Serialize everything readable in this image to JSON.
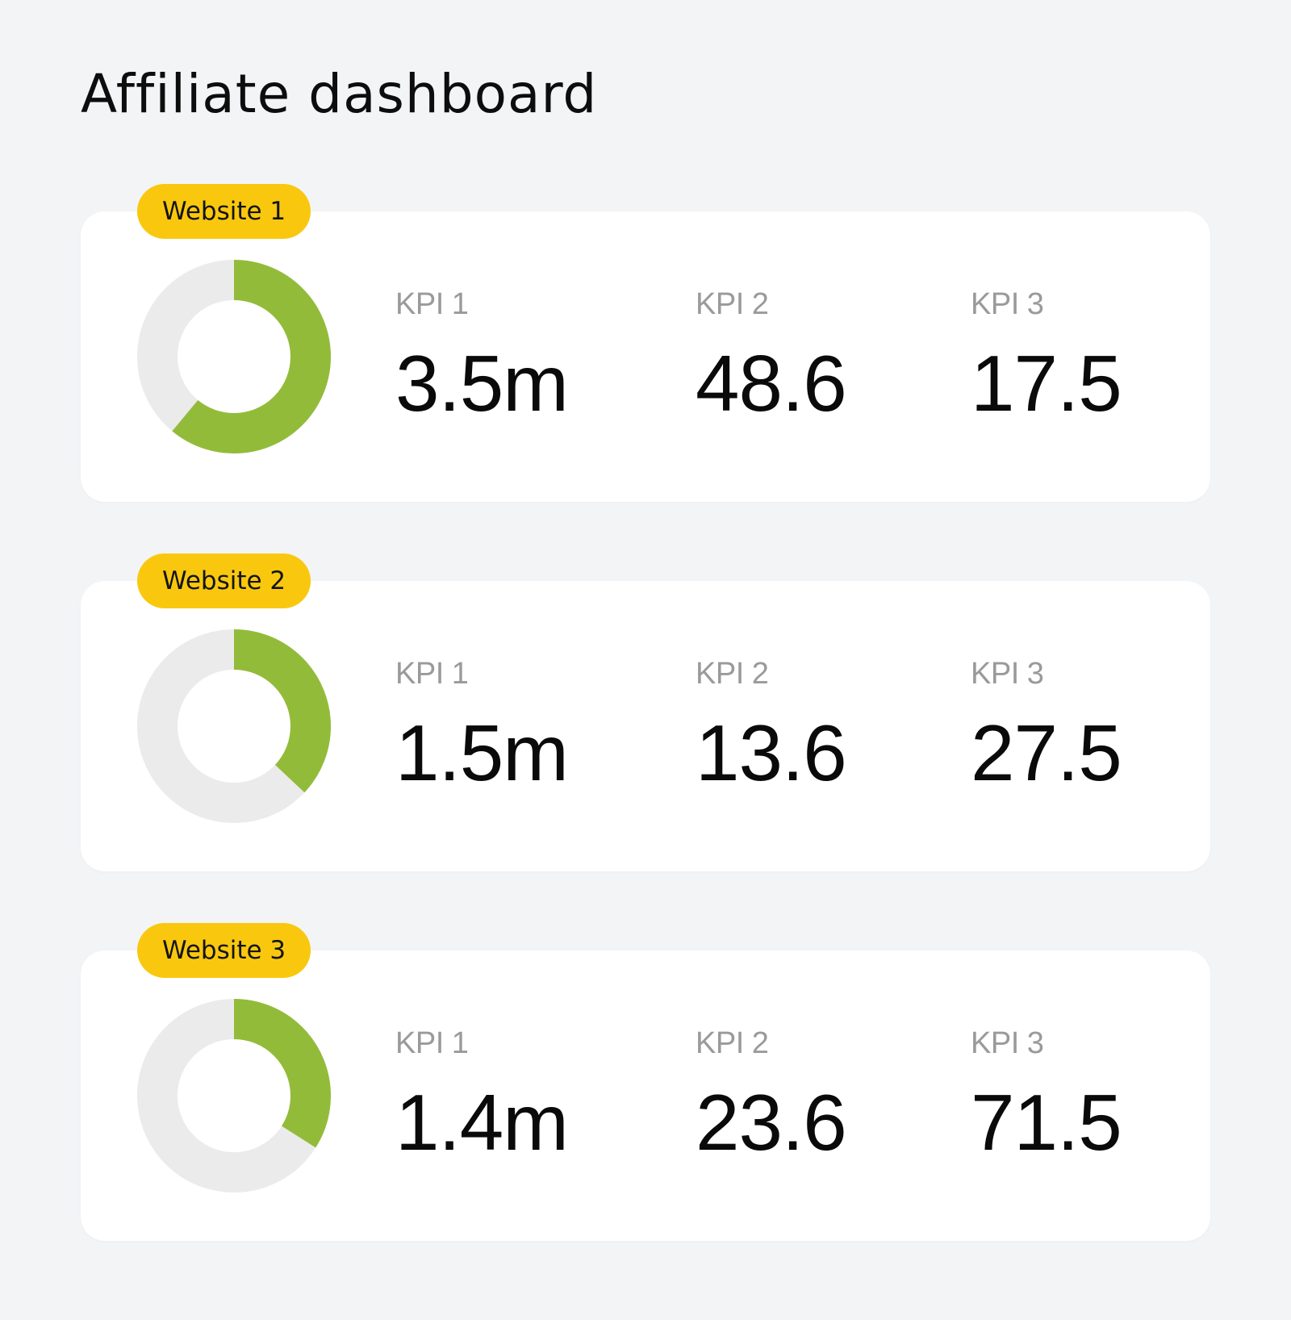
{
  "page": {
    "title": "Affiliate dashboard"
  },
  "colors": {
    "background": "#f3f4f6",
    "card": "#ffffff",
    "badge": "#f9c80e",
    "donut_fill": "#93bb3a",
    "donut_track": "#ebebeb",
    "kpi_label": "#9a9a9a",
    "kpi_value": "#0a0a0a"
  },
  "sites": [
    {
      "name": "Website 1",
      "progress": 0.61,
      "kpis": [
        {
          "label": "KPI 1",
          "value": "3.5m"
        },
        {
          "label": "KPI 2",
          "value": "48.6"
        },
        {
          "label": "KPI 3",
          "value": "17.5"
        }
      ]
    },
    {
      "name": "Website 2",
      "progress": 0.37,
      "kpis": [
        {
          "label": "KPI 1",
          "value": "1.5m"
        },
        {
          "label": "KPI 2",
          "value": "13.6"
        },
        {
          "label": "KPI 3",
          "value": "27.5"
        }
      ]
    },
    {
      "name": "Website 3",
      "progress": 0.34,
      "kpis": [
        {
          "label": "KPI 1",
          "value": "1.4m"
        },
        {
          "label": "KPI 2",
          "value": "23.6"
        },
        {
          "label": "KPI 3",
          "value": "71.5"
        }
      ]
    }
  ]
}
